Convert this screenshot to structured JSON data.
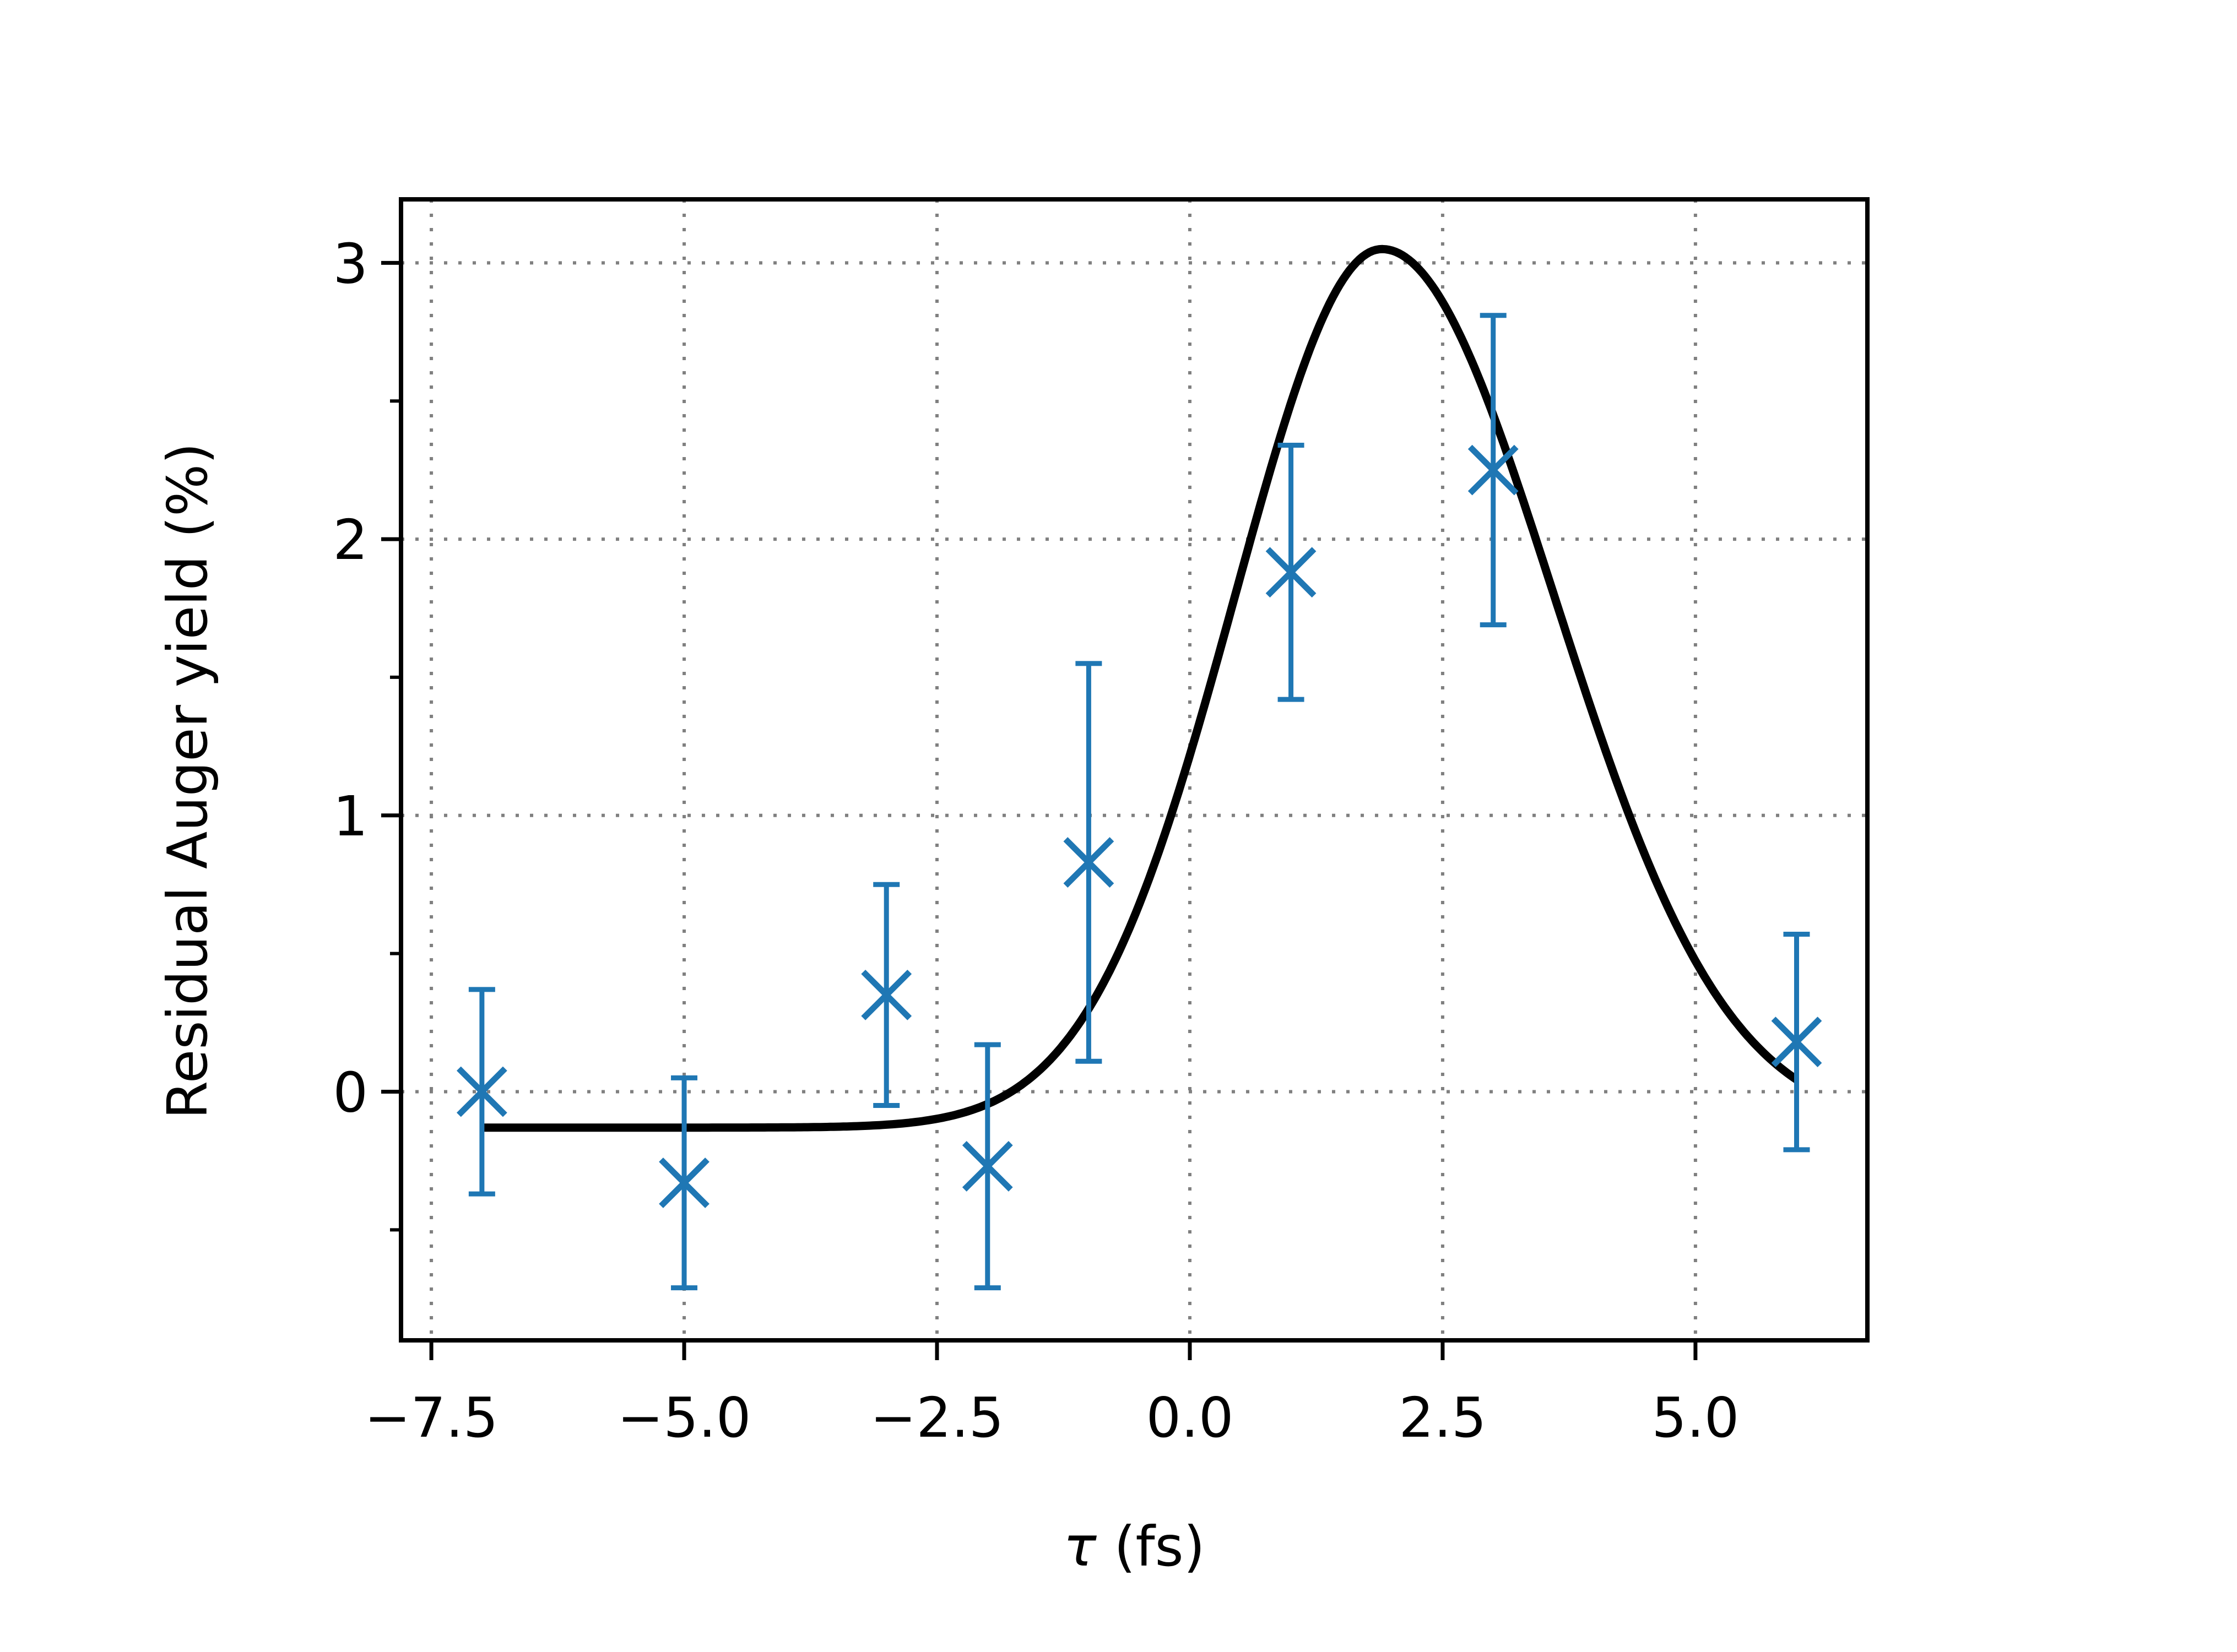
{
  "chart_data": {
    "type": "scatter",
    "xlabel_symbol": "τ",
    "xlabel_unit": " (fs)",
    "ylabel": "Residual Auger yield (%)",
    "xlim": [
      -7.8,
      6.7
    ],
    "ylim": [
      -0.9,
      3.23
    ],
    "x_ticks": [
      -7.5,
      -5.0,
      -2.5,
      0.0,
      2.5,
      5.0
    ],
    "x_tick_labels": [
      "−7.5",
      "−5.0",
      "−2.5",
      "0.0",
      "2.5",
      "5.0"
    ],
    "y_ticks": [
      0,
      1,
      2,
      3
    ],
    "y_tick_labels": [
      "0",
      "1",
      "2",
      "3"
    ],
    "y_minor_ticks": [
      -0.5,
      0.5,
      1.5,
      2.5
    ],
    "grid": true,
    "series": [
      {
        "kind": "errorbar",
        "marker": "x",
        "color": "#1f77b4",
        "points": [
          {
            "x": -7,
            "y": 0.0,
            "err": 0.37
          },
          {
            "x": -5,
            "y": -0.33,
            "err": 0.38
          },
          {
            "x": -3,
            "y": 0.35,
            "err": 0.4
          },
          {
            "x": -2,
            "y": -0.27,
            "err": 0.44
          },
          {
            "x": -1,
            "y": 0.83,
            "err": 0.72
          },
          {
            "x": 1,
            "y": 1.88,
            "err": 0.46
          },
          {
            "x": 3,
            "y": 2.25,
            "err": 0.56
          },
          {
            "x": 6,
            "y": 0.18,
            "err": 0.39
          }
        ]
      },
      {
        "kind": "line",
        "color": "#000000",
        "curve": {
          "baseline": -0.13,
          "amplitude": 3.18,
          "center": 1.9,
          "sigma_left": 1.45,
          "sigma_right": 1.7,
          "x_start": -7,
          "x_end": 6
        }
      }
    ]
  }
}
